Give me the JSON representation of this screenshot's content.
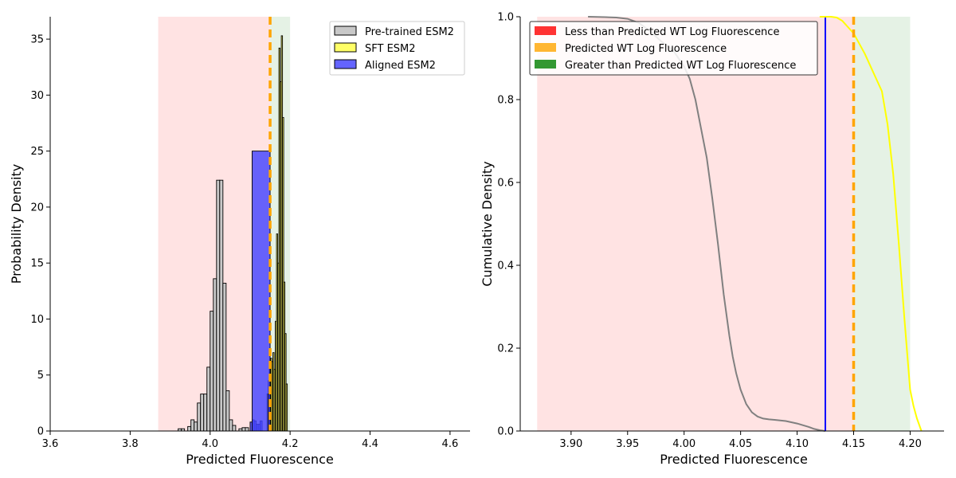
{
  "chart_data": [
    {
      "type": "bar",
      "xlabel": "Predicted Fluorescence",
      "ylabel": "Probability Density",
      "xlim": [
        3.6,
        4.65
      ],
      "ylim": [
        0,
        37
      ],
      "xticks": [
        "3.6",
        "3.8",
        "4.0",
        "4.2",
        "4.4",
        "4.6"
      ],
      "yticks": [
        "0",
        "5",
        "10",
        "15",
        "20",
        "25",
        "30",
        "35"
      ],
      "legend_position": "top-right",
      "shaded_regions": [
        {
          "x0": 3.87,
          "x1": 4.15,
          "color": "#ff0000",
          "alpha": 0.11
        },
        {
          "x0": 4.15,
          "x1": 4.2,
          "color": "#008000",
          "alpha": 0.1
        }
      ],
      "wt_line": {
        "x": 4.15,
        "color": "#ffa500"
      },
      "series": [
        {
          "name": "Pre-trained ESM2",
          "fill": "#c8c8c8",
          "alpha": 1,
          "bins": [
            [
              3.92,
              3.928,
              0.2
            ],
            [
              3.928,
              3.936,
              0.2
            ],
            [
              3.944,
              3.952,
              0.4
            ],
            [
              3.952,
              3.96,
              1.0
            ],
            [
              3.96,
              3.968,
              0.8
            ],
            [
              3.968,
              3.976,
              2.5
            ],
            [
              3.976,
              3.984,
              3.3
            ],
            [
              3.984,
              3.992,
              3.3
            ],
            [
              3.992,
              4.0,
              5.7
            ],
            [
              4.0,
              4.008,
              10.7
            ],
            [
              4.008,
              4.016,
              13.6
            ],
            [
              4.016,
              4.024,
              22.4
            ],
            [
              4.024,
              4.032,
              22.4
            ],
            [
              4.032,
              4.04,
              13.2
            ],
            [
              4.04,
              4.048,
              3.6
            ],
            [
              4.048,
              4.056,
              1.0
            ],
            [
              4.056,
              4.064,
              0.5
            ],
            [
              4.072,
              4.08,
              0.2
            ],
            [
              4.08,
              4.088,
              0.3
            ],
            [
              4.088,
              4.096,
              0.3
            ]
          ]
        },
        {
          "name": "SFT ESM2",
          "fill": "#ffff66",
          "alpha": 1,
          "bins": [
            [
              4.142,
              4.145,
              3.3
            ],
            [
              4.145,
              4.148,
              4.5
            ],
            [
              4.148,
              4.151,
              5.8
            ],
            [
              4.151,
              4.154,
              6.5
            ],
            [
              4.154,
              4.157,
              6.2
            ],
            [
              4.157,
              4.16,
              7.0
            ],
            [
              4.16,
              4.163,
              5.5
            ],
            [
              4.163,
              4.166,
              9.8
            ],
            [
              4.166,
              4.169,
              17.6
            ],
            [
              4.169,
              4.172,
              15.0
            ],
            [
              4.172,
              4.175,
              34.2
            ],
            [
              4.175,
              4.178,
              31.2
            ],
            [
              4.178,
              4.181,
              35.3
            ],
            [
              4.181,
              4.184,
              28.0
            ],
            [
              4.184,
              4.187,
              13.3
            ],
            [
              4.187,
              4.19,
              8.7
            ],
            [
              4.19,
              4.193,
              4.2
            ]
          ]
        },
        {
          "name": "Aligned ESM2",
          "fill": "#4444ff",
          "alpha": 0.82,
          "bins": [
            [
              4.1,
              4.105,
              0.8
            ],
            [
              4.105,
              4.11,
              1.0
            ],
            [
              4.11,
              4.115,
              0.9
            ],
            [
              4.115,
              4.12,
              0.6
            ],
            [
              4.12,
              4.125,
              0.6
            ],
            [
              4.125,
              4.13,
              0.9
            ],
            [
              4.105,
              4.15,
              25.0
            ],
            [
              4.145,
              4.15,
              3.3
            ]
          ]
        }
      ]
    },
    {
      "type": "line",
      "xlabel": "Predicted Fluorescence",
      "ylabel": "Cumulative Density",
      "xlim": [
        3.855,
        4.23
      ],
      "ylim": [
        0,
        1
      ],
      "xticks": [
        "3.90",
        "3.95",
        "4.00",
        "4.05",
        "4.10",
        "4.15",
        "4.20"
      ],
      "yticks": [
        "0.0",
        "0.2",
        "0.4",
        "0.6",
        "0.8",
        "1.0"
      ],
      "legend_position": "top-left",
      "shaded_regions": [
        {
          "x0": 3.87,
          "x1": 4.15,
          "color": "#ff0000",
          "alpha": 0.11
        },
        {
          "x0": 4.15,
          "x1": 4.2,
          "color": "#008000",
          "alpha": 0.1
        }
      ],
      "legend": [
        {
          "label": "Less than Predicted WT Log Fluorescence",
          "color": "#ff0000"
        },
        {
          "label": "Predicted WT Log Fluorescence",
          "color": "#ffa500"
        },
        {
          "label": "Greater than Predicted WT Log Fluorescence",
          "color": "#008000"
        }
      ],
      "wt_line": {
        "x": 4.15,
        "color": "#ffa500"
      },
      "series": [
        {
          "color": "#808080",
          "x": [
            3.915,
            3.93,
            3.94,
            3.95,
            3.96,
            3.97,
            3.98,
            3.99,
            3.995,
            4.0,
            4.005,
            4.01,
            4.015,
            4.02,
            4.025,
            4.03,
            4.035,
            4.04,
            4.043,
            4.046,
            4.05,
            4.055,
            4.06,
            4.065,
            4.07,
            4.075,
            4.08,
            4.09,
            4.1,
            4.11,
            4.115,
            4.12,
            4.125
          ],
          "y": [
            1.0,
            0.999,
            0.998,
            0.995,
            0.985,
            0.965,
            0.94,
            0.92,
            0.9,
            0.88,
            0.85,
            0.8,
            0.73,
            0.66,
            0.56,
            0.45,
            0.33,
            0.23,
            0.18,
            0.14,
            0.1,
            0.065,
            0.045,
            0.035,
            0.03,
            0.028,
            0.027,
            0.024,
            0.018,
            0.01,
            0.005,
            0.002,
            0.0
          ]
        },
        {
          "color": "#0000ff",
          "x": [
            4.125,
            4.125
          ],
          "y": [
            0.0,
            1.0
          ]
        },
        {
          "color": "#ffff00",
          "x": [
            4.12,
            4.13,
            4.135,
            4.14,
            4.145,
            4.15,
            4.155,
            4.16,
            4.165,
            4.17,
            4.175,
            4.18,
            4.185,
            4.19,
            4.195,
            4.2,
            4.203,
            4.206,
            4.21
          ],
          "y": [
            1.0,
            1.0,
            0.998,
            0.99,
            0.975,
            0.96,
            0.935,
            0.91,
            0.88,
            0.85,
            0.82,
            0.74,
            0.62,
            0.45,
            0.27,
            0.1,
            0.06,
            0.03,
            0.0
          ]
        }
      ]
    }
  ],
  "legend1": [
    {
      "label": "Pre-trained ESM2",
      "fill": "#c8c8c8"
    },
    {
      "label": "SFT ESM2",
      "fill": "#ffff66"
    },
    {
      "label": "Aligned ESM2",
      "fill": "#6464ff"
    }
  ]
}
